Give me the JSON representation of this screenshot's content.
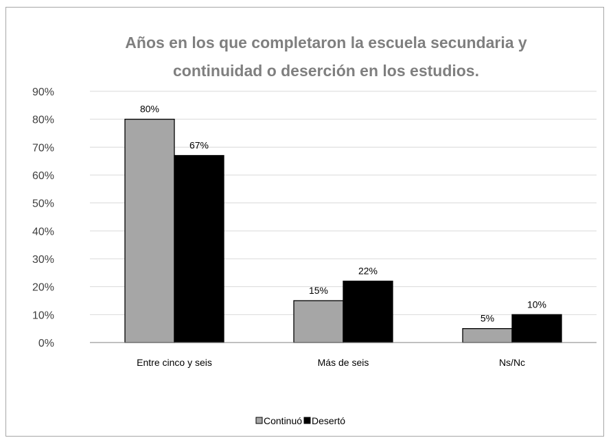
{
  "chart_data": {
    "type": "bar",
    "title": "Años en los que completaron la escuela secundaria y continuidad o deserción en los estudios.",
    "title_lines": [
      "Años en los que completaron la escuela secundaria y",
      "continuidad o deserción en los estudios."
    ],
    "categories": [
      "Entre cinco y seis",
      "Más de seis",
      "Ns/Nc"
    ],
    "series": [
      {
        "name": "Continuó",
        "values": [
          80,
          15,
          5
        ],
        "labels": [
          "80%",
          "15%",
          "5%"
        ],
        "color": "#a6a6a6"
      },
      {
        "name": "Desertó",
        "values": [
          67,
          22,
          10
        ],
        "labels": [
          "67%",
          "22%",
          "10%"
        ],
        "color": "#000000"
      }
    ],
    "ylim": [
      0,
      90
    ],
    "yticks": [
      "0%",
      "10%",
      "20%",
      "30%",
      "40%",
      "50%",
      "60%",
      "70%",
      "80%",
      "90%"
    ],
    "grid": true,
    "legend": "bottom",
    "xlabel": "",
    "ylabel": ""
  }
}
